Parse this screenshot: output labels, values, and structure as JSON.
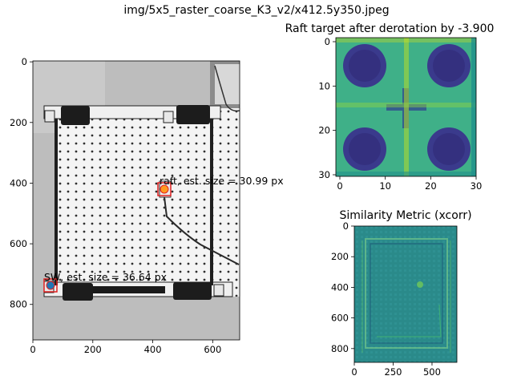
{
  "figure": {
    "suptitle": "img/5x5_raster_coarse_K3_v2/x412.5y350.jpeg"
  },
  "chart_data": [
    {
      "type": "image",
      "title": "",
      "x_ticks": [
        "0",
        "200",
        "400",
        "600"
      ],
      "y_ticks": [
        "0",
        "200",
        "400",
        "600",
        "800"
      ],
      "xlim": [
        0,
        690
      ],
      "ylim": [
        920,
        0
      ],
      "annotations": [
        {
          "text": "raft, est. size = 30.99 px",
          "x": 420,
          "y": 418
        },
        {
          "text": "SW, est. size = 36.64 px",
          "x": 42,
          "y": 740
        }
      ],
      "markers": [
        {
          "name": "raft",
          "x": 440,
          "y": 425,
          "fill": "#ff9a1e",
          "edge": "#e02020"
        },
        {
          "name": "SW",
          "x": 60,
          "y": 745,
          "fill": "#1f77b4",
          "edge": "#e02020"
        }
      ],
      "grid": false
    },
    {
      "type": "heatmap",
      "title": "Raft target after derotation by -3.900",
      "x_ticks": [
        "0",
        "10",
        "20",
        "30"
      ],
      "y_ticks": [
        "0",
        "10",
        "20",
        "30"
      ],
      "size": [
        31,
        31
      ],
      "colormap": "viridis",
      "grid": false
    },
    {
      "type": "heatmap",
      "title": "Similarity Metric (xcorr)",
      "x_ticks": [
        "0",
        "250",
        "500"
      ],
      "y_ticks": [
        "0",
        "200",
        "400",
        "600",
        "800"
      ],
      "xlim": [
        0,
        660
      ],
      "ylim": [
        890,
        0
      ],
      "colormap": "viridis",
      "grid": false
    }
  ]
}
